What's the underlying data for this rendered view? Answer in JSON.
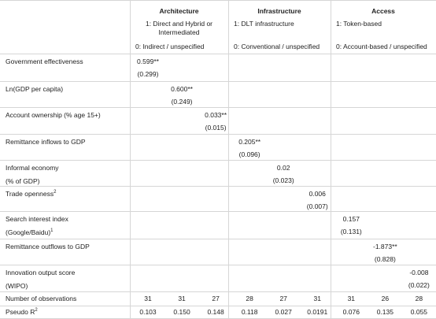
{
  "header": {
    "groups": [
      {
        "title": "Architecture",
        "line1": "1: Direct and Hybrid or Intermediated",
        "line0": "0: Indirect / unspecified"
      },
      {
        "title": "Infrastructure",
        "line1": "1: DLT infrastructure",
        "line0": "0: Conventional / unspecified"
      },
      {
        "title": "Access",
        "line1": "1: Token-based",
        "line0": "0: Account-based / unspecified"
      }
    ]
  },
  "table": {
    "rows": [
      {
        "label": [
          "Government effectiveness"
        ],
        "coefs": [
          "0.599**",
          null,
          null,
          null,
          null,
          null,
          null,
          null,
          null
        ],
        "ses": [
          "(0.299)",
          null,
          null,
          null,
          null,
          null,
          null,
          null,
          null
        ]
      },
      {
        "label": [
          "Ln(GDP per capita)"
        ],
        "coefs": [
          null,
          "0.600**",
          null,
          null,
          null,
          null,
          null,
          null,
          null
        ],
        "ses": [
          null,
          "(0.249)",
          null,
          null,
          null,
          null,
          null,
          null,
          null
        ]
      },
      {
        "label": [
          "Account ownership (% age 15+)"
        ],
        "coefs": [
          null,
          null,
          "0.033**",
          null,
          null,
          null,
          null,
          null,
          null
        ],
        "ses": [
          null,
          null,
          "(0.015)",
          null,
          null,
          null,
          null,
          null,
          null
        ]
      },
      {
        "label": [
          "Remittance inflows to GDP"
        ],
        "coefs": [
          null,
          null,
          null,
          "0.205**",
          null,
          null,
          null,
          null,
          null
        ],
        "ses": [
          null,
          null,
          null,
          "(0.096)",
          null,
          null,
          null,
          null,
          null
        ]
      },
      {
        "label": [
          "Informal economy",
          "(% of GDP)"
        ],
        "coefs": [
          null,
          null,
          null,
          null,
          "0.02",
          null,
          null,
          null,
          null
        ],
        "ses": [
          null,
          null,
          null,
          null,
          "(0.023)",
          null,
          null,
          null,
          null
        ]
      },
      {
        "label": [
          "Trade openness"
        ],
        "sup": "2",
        "coefs": [
          null,
          null,
          null,
          null,
          null,
          "0.006",
          null,
          null,
          null
        ],
        "ses": [
          null,
          null,
          null,
          null,
          null,
          "(0.007)",
          null,
          null,
          null
        ]
      },
      {
        "label": [
          "Search interest index",
          "(Google/Baidu)"
        ],
        "sup": "1",
        "coefs": [
          null,
          null,
          null,
          null,
          null,
          null,
          "0.157",
          null,
          null
        ],
        "ses": [
          null,
          null,
          null,
          null,
          null,
          null,
          "(0.131)",
          null,
          null
        ]
      },
      {
        "label": [
          "Remittance outflows to GDP"
        ],
        "coefs": [
          null,
          null,
          null,
          null,
          null,
          null,
          null,
          "-1.873**",
          null
        ],
        "ses": [
          null,
          null,
          null,
          null,
          null,
          null,
          null,
          "(0.828)",
          null
        ]
      },
      {
        "label": [
          "Innovation output score",
          "(WIPO)"
        ],
        "coefs": [
          null,
          null,
          null,
          null,
          null,
          null,
          null,
          null,
          "-0.008"
        ],
        "ses": [
          null,
          null,
          null,
          null,
          null,
          null,
          null,
          null,
          "(0.022)"
        ]
      }
    ],
    "observations": {
      "label": "Number of observations",
      "values": [
        31,
        31,
        27,
        28,
        27,
        31,
        31,
        26,
        28
      ]
    },
    "pseudo_r2": {
      "label": "Pseudo R",
      "sup": "2",
      "values": [
        "0.103",
        "0.150",
        "0.148",
        "0.118",
        "0.027",
        "0.0191",
        "0.076",
        "0.135",
        "0.055"
      ]
    }
  }
}
